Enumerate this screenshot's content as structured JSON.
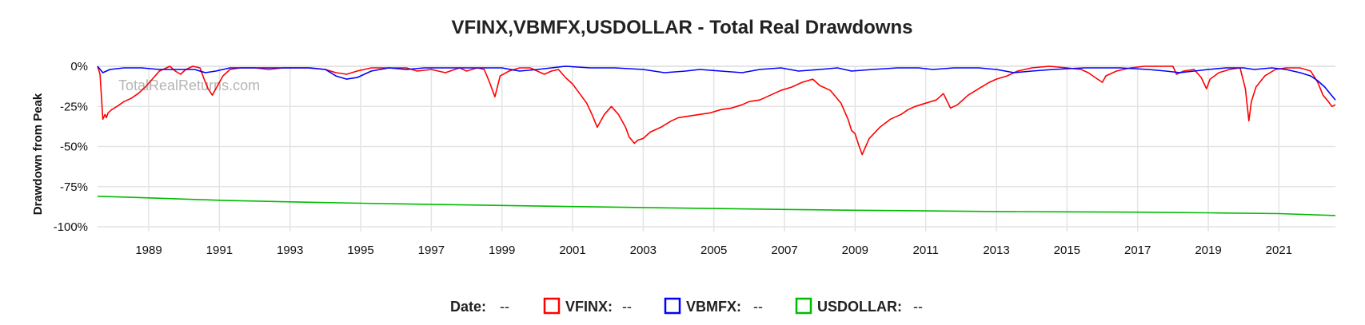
{
  "chart_data": {
    "type": "line",
    "title": "VFINX,VBMFX,USDOLLAR - Total Real Drawdowns",
    "xlabel": "",
    "ylabel": "Drawdown from Peak",
    "watermark": "TotalRealReturns.com",
    "x_range": [
      1987.55,
      2022.6
    ],
    "ylim": [
      -100,
      0
    ],
    "x_ticks": [
      "1989",
      "1991",
      "1993",
      "1995",
      "1997",
      "1999",
      "2001",
      "2003",
      "2005",
      "2007",
      "2009",
      "2011",
      "2013",
      "2015",
      "2017",
      "2019",
      "2021"
    ],
    "y_ticks": [
      {
        "value": 0,
        "label": "0%"
      },
      {
        "value": -25,
        "label": "-25%"
      },
      {
        "value": -50,
        "label": "-50%"
      },
      {
        "value": -75,
        "label": "-75%"
      },
      {
        "value": -100,
        "label": "-100%"
      }
    ],
    "grid": true,
    "legend_position": "bottom",
    "series": [
      {
        "name": "VFINX",
        "color": "#ff0000",
        "x": [
          1987.55,
          1987.62,
          1987.7,
          1987.76,
          1987.8,
          1987.85,
          1987.95,
          1988.1,
          1988.3,
          1988.5,
          1988.7,
          1988.9,
          1989.1,
          1989.3,
          1989.5,
          1989.6,
          1989.75,
          1989.9,
          1990.05,
          1990.25,
          1990.45,
          1990.55,
          1990.68,
          1990.8,
          1990.95,
          1991.1,
          1991.3,
          1991.6,
          1992.0,
          1992.4,
          1992.8,
          1993.2,
          1993.6,
          1994.0,
          1994.3,
          1994.6,
          1994.9,
          1995.3,
          1995.8,
          1996.3,
          1996.6,
          1997.0,
          1997.4,
          1997.8,
          1998.0,
          1998.3,
          1998.5,
          1998.65,
          1998.8,
          1998.95,
          1999.2,
          1999.5,
          1999.8,
          2000.0,
          2000.2,
          2000.4,
          2000.6,
          2000.8,
          2001.0,
          2001.2,
          2001.4,
          2001.55,
          2001.7,
          2001.9,
          2002.1,
          2002.3,
          2002.5,
          2002.6,
          2002.75,
          2002.85,
          2003.0,
          2003.2,
          2003.5,
          2003.8,
          2004.0,
          2004.3,
          2004.6,
          2004.9,
          2005.2,
          2005.5,
          2005.8,
          2006.0,
          2006.3,
          2006.6,
          2006.9,
          2007.2,
          2007.5,
          2007.8,
          2008.0,
          2008.3,
          2008.6,
          2008.8,
          2008.9,
          2009.0,
          2009.1,
          2009.2,
          2009.4,
          2009.7,
          2010.0,
          2010.3,
          2010.5,
          2010.7,
          2011.0,
          2011.3,
          2011.5,
          2011.7,
          2011.9,
          2012.2,
          2012.5,
          2012.8,
          2013.0,
          2013.3,
          2013.6,
          2014.0,
          2014.5,
          2015.0,
          2015.4,
          2015.6,
          2015.8,
          2016.0,
          2016.1,
          2016.4,
          2016.8,
          2017.2,
          2017.6,
          2018.0,
          2018.1,
          2018.3,
          2018.6,
          2018.8,
          2018.95,
          2019.05,
          2019.3,
          2019.6,
          2019.9,
          2020.05,
          2020.15,
          2020.22,
          2020.35,
          2020.6,
          2020.9,
          2021.2,
          2021.6,
          2021.9,
          2022.1,
          2022.25,
          2022.4,
          2022.5,
          2022.6
        ],
        "y": [
          0,
          -5,
          -33,
          -30,
          -32,
          -29,
          -27,
          -25,
          -22,
          -20,
          -17,
          -13,
          -8,
          -3,
          -1,
          0,
          -3,
          -5,
          -2,
          0,
          -1,
          -7,
          -14,
          -18,
          -12,
          -6,
          -2,
          -1,
          -1,
          -2,
          -1,
          -1,
          -1,
          -2,
          -4,
          -5,
          -3,
          -1,
          -1,
          -1,
          -3,
          -2,
          -4,
          -1,
          -3,
          -1,
          -2,
          -10,
          -19,
          -6,
          -3,
          -1,
          -1,
          -3,
          -5,
          -3,
          -2,
          -7,
          -11,
          -17,
          -23,
          -30,
          -38,
          -30,
          -25,
          -30,
          -38,
          -44,
          -48,
          -46,
          -45,
          -41,
          -38,
          -34,
          -32,
          -31,
          -30,
          -29,
          -27,
          -26,
          -24,
          -22,
          -21,
          -18,
          -15,
          -13,
          -10,
          -8,
          -12,
          -15,
          -23,
          -33,
          -40,
          -42,
          -49,
          -55,
          -45,
          -38,
          -33,
          -30,
          -27,
          -25,
          -23,
          -21,
          -17,
          -26,
          -24,
          -18,
          -14,
          -10,
          -8,
          -6,
          -3,
          -1,
          0,
          -1,
          -2,
          -4,
          -7,
          -10,
          -6,
          -3,
          -1,
          0,
          0,
          0,
          -5,
          -3,
          -2,
          -7,
          -14,
          -8,
          -4,
          -2,
          -1,
          -14,
          -34,
          -22,
          -13,
          -6,
          -2,
          -1,
          -1,
          -3,
          -10,
          -18,
          -22,
          -25,
          -24
        ]
      },
      {
        "name": "VBMFX",
        "color": "#0000ff",
        "x": [
          1987.55,
          1987.7,
          1987.9,
          1988.3,
          1988.8,
          1989.3,
          1989.8,
          1990.3,
          1990.6,
          1990.9,
          1991.3,
          1992.0,
          1992.8,
          1993.5,
          1994.0,
          1994.3,
          1994.6,
          1994.9,
          1995.3,
          1995.8,
          1996.3,
          1996.8,
          1997.5,
          1998.2,
          1999.0,
          1999.5,
          2000.0,
          2000.4,
          2000.8,
          2001.5,
          2002.2,
          2003.0,
          2003.6,
          2004.2,
          2004.6,
          2005.2,
          2005.8,
          2006.3,
          2006.9,
          2007.4,
          2008.0,
          2008.5,
          2008.9,
          2009.5,
          2010.2,
          2010.8,
          2011.2,
          2011.8,
          2012.5,
          2013.0,
          2013.5,
          2014.0,
          2014.6,
          2015.5,
          2016.5,
          2017.3,
          2017.8,
          2018.2,
          2018.6,
          2019.0,
          2019.5,
          2020.0,
          2020.3,
          2020.8,
          2021.2,
          2021.6,
          2021.9,
          2022.1,
          2022.3,
          2022.45,
          2022.6
        ],
        "y": [
          0,
          -4,
          -2,
          -1,
          -1,
          -2,
          -2,
          -2,
          -4,
          -3,
          -1,
          -1,
          -1,
          -1,
          -2,
          -6,
          -8,
          -7,
          -3,
          -1,
          -2,
          -1,
          -1,
          -1,
          -1,
          -3,
          -2,
          -1,
          0,
          -1,
          -1,
          -2,
          -4,
          -3,
          -2,
          -3,
          -4,
          -2,
          -1,
          -3,
          -2,
          -1,
          -3,
          -2,
          -1,
          -1,
          -2,
          -1,
          -1,
          -2,
          -4,
          -3,
          -2,
          -1,
          -1,
          -2,
          -3,
          -4,
          -3,
          -2,
          -1,
          -1,
          -2,
          -1,
          -2,
          -4,
          -6,
          -9,
          -13,
          -17,
          -21
        ]
      },
      {
        "name": "USDOLLAR",
        "color": "#00bb00",
        "x": [
          1987.55,
          1989.0,
          1991.0,
          1993.0,
          1995.0,
          1997.0,
          1999.0,
          2001.0,
          2003.0,
          2005.0,
          2007.0,
          2009.0,
          2011.0,
          2013.0,
          2015.0,
          2017.0,
          2019.0,
          2021.0,
          2022.6
        ],
        "y": [
          -81,
          -82,
          -83.5,
          -84.5,
          -85.3,
          -86,
          -86.7,
          -87.4,
          -88,
          -88.6,
          -89.2,
          -89.7,
          -90.1,
          -90.5,
          -90.7,
          -90.9,
          -91.3,
          -91.8,
          -93
        ]
      }
    ]
  },
  "legend": {
    "date_label": "Date:",
    "date_value": "--",
    "items": [
      {
        "label": "VFINX:",
        "value": "--",
        "color": "#ff0000"
      },
      {
        "label": "VBMFX:",
        "value": "--",
        "color": "#0000ff"
      },
      {
        "label": "USDOLLAR:",
        "value": "--",
        "color": "#00bb00"
      }
    ]
  },
  "colors": {
    "grid": "#e4e4e4",
    "watermark": "#b5b5b5"
  }
}
